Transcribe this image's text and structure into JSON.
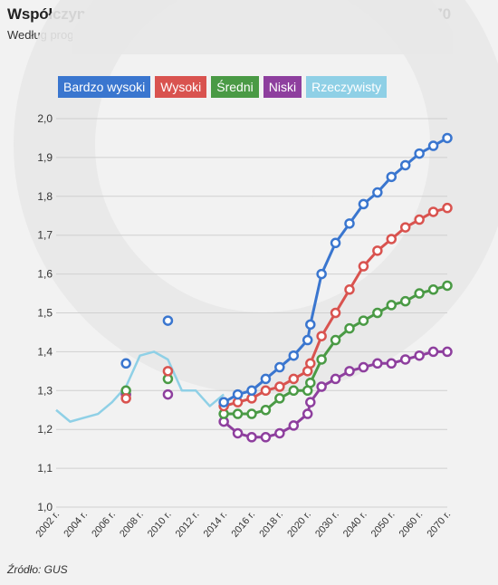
{
  "title": "Współczynnik dzietności ogólnej w Polsce w latach 2002-2070",
  "subtitle": "Według prognoz GUS",
  "source": "Źródło: GUS",
  "colors": {
    "bardzo_wysoki": "#3a76cf",
    "wysoki": "#d9534f",
    "sredni": "#4a9a45",
    "niski": "#8e3f9e",
    "rzeczywisty": "#8fd0e6"
  },
  "chart_data": {
    "type": "line",
    "title": "Współczynnik dzietności ogólnej w Polsce w latach 2002-2070",
    "subtitle": "Według prognoz GUS",
    "xlabel": "",
    "ylabel": "",
    "ylim": [
      1.0,
      2.0
    ],
    "yticks": [
      "2,0",
      "1,9",
      "1,8",
      "1,7",
      "1,6",
      "1,5",
      "1,4",
      "1,3",
      "1,2",
      "1,1",
      "1,0"
    ],
    "xticks": [
      "2002 r.",
      "2004 r.",
      "2006 r.",
      "2008 r.",
      "2010 r.",
      "2012 r.",
      "2014 r.",
      "2016 r.",
      "2018 r.",
      "2020 r.",
      "2030 r.",
      "2040 r.",
      "2050 r.",
      "2060 r.",
      "2070 r."
    ],
    "grid": true,
    "legend_position": "top",
    "legend": [
      "Bardzo wysoki",
      "Wysoki",
      "Średni",
      "Niski",
      "Rzeczywisty"
    ],
    "series": [
      {
        "name": "Rzeczywisty",
        "color": "#8fd0e6",
        "x": [
          2002,
          2003,
          2004,
          2005,
          2006,
          2007,
          2008,
          2009,
          2010,
          2011,
          2012,
          2013,
          2014
        ],
        "values": [
          1.25,
          1.22,
          1.23,
          1.24,
          1.27,
          1.31,
          1.39,
          1.4,
          1.38,
          1.3,
          1.3,
          1.26,
          1.29
        ]
      },
      {
        "name": "Bardzo wysoki",
        "color": "#3a76cf",
        "x": [
          2007,
          2010,
          2014,
          2015,
          2016,
          2017,
          2018,
          2019,
          2020,
          2021,
          2025,
          2030,
          2035,
          2040,
          2045,
          2050,
          2055,
          2060,
          2065,
          2070
        ],
        "values": [
          1.37,
          1.48,
          1.27,
          1.29,
          1.3,
          1.33,
          1.36,
          1.39,
          1.43,
          1.47,
          1.6,
          1.68,
          1.73,
          1.78,
          1.81,
          1.85,
          1.88,
          1.91,
          1.93,
          1.95
        ],
        "connected_from": 2014
      },
      {
        "name": "Wysoki",
        "color": "#d9534f",
        "x": [
          2007,
          2010,
          2014,
          2015,
          2016,
          2017,
          2018,
          2019,
          2020,
          2021,
          2025,
          2030,
          2035,
          2040,
          2045,
          2050,
          2055,
          2060,
          2065,
          2070
        ],
        "values": [
          1.28,
          1.35,
          1.26,
          1.27,
          1.28,
          1.3,
          1.31,
          1.33,
          1.35,
          1.37,
          1.44,
          1.5,
          1.56,
          1.62,
          1.66,
          1.69,
          1.72,
          1.74,
          1.76,
          1.77
        ],
        "connected_from": 2014
      },
      {
        "name": "Średni",
        "color": "#4a9a45",
        "x": [
          2007,
          2010,
          2014,
          2015,
          2016,
          2017,
          2018,
          2019,
          2020,
          2021,
          2025,
          2030,
          2035,
          2040,
          2045,
          2050,
          2055,
          2060,
          2065,
          2070
        ],
        "values": [
          1.3,
          1.33,
          1.24,
          1.24,
          1.24,
          1.25,
          1.28,
          1.3,
          1.3,
          1.32,
          1.38,
          1.43,
          1.46,
          1.48,
          1.5,
          1.52,
          1.53,
          1.55,
          1.56,
          1.57
        ],
        "connected_from": 2014
      },
      {
        "name": "Niski",
        "color": "#8e3f9e",
        "x": [
          2007,
          2010,
          2014,
          2015,
          2016,
          2017,
          2018,
          2019,
          2020,
          2021,
          2025,
          2030,
          2035,
          2040,
          2045,
          2050,
          2055,
          2060,
          2065,
          2070
        ],
        "values": [
          1.29,
          1.29,
          1.22,
          1.19,
          1.18,
          1.18,
          1.19,
          1.21,
          1.24,
          1.27,
          1.31,
          1.33,
          1.35,
          1.36,
          1.37,
          1.37,
          1.38,
          1.39,
          1.4,
          1.4
        ],
        "connected_from": 2014
      }
    ]
  }
}
